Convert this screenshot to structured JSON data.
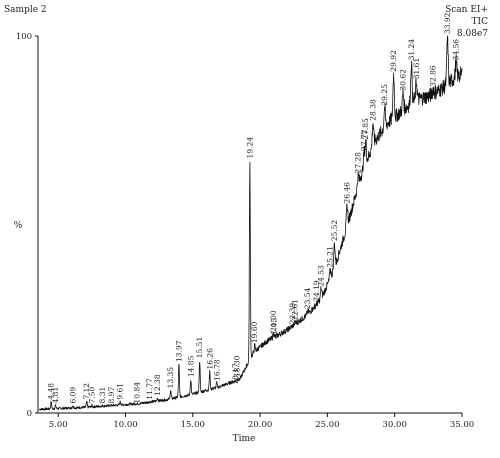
{
  "chart_data": {
    "type": "line",
    "sample_title": "Sample 2",
    "info": [
      "Scan EI+",
      "TIC",
      "8.08e7"
    ],
    "xlabel": "Time",
    "ylabel": "%",
    "xlim": [
      3.5,
      35.0
    ],
    "ylim": [
      0,
      100
    ],
    "x_ticks": [
      5.0,
      10.0,
      15.0,
      20.0,
      25.0,
      30.0,
      35.0
    ],
    "x_tick_labels": [
      "5.00",
      "10.00",
      "15.00",
      "20.00",
      "25.00",
      "30.00",
      "35.00"
    ],
    "y_ticks": [
      0,
      100
    ],
    "y_tick_labels": [
      "0",
      "100"
    ],
    "peaks": [
      {
        "rt": 4.48,
        "label": "4.48",
        "h": 3
      },
      {
        "rt": 4.81,
        "label": "4.81",
        "h": 2
      },
      {
        "rt": 6.09,
        "label": "6.09",
        "h": 2
      },
      {
        "rt": 7.12,
        "label": "7.12",
        "h": 3
      },
      {
        "rt": 7.5,
        "label": "7.50",
        "h": 2
      },
      {
        "rt": 8.31,
        "label": "8.31",
        "h": 2
      },
      {
        "rt": 8.97,
        "label": "8.97",
        "h": 2
      },
      {
        "rt": 9.61,
        "label": "9.61",
        "h": 3
      },
      {
        "rt": 10.84,
        "label": "10.84",
        "h": 2
      },
      {
        "rt": 11.77,
        "label": "11.77",
        "h": 3
      },
      {
        "rt": 12.38,
        "label": "12.38",
        "h": 4
      },
      {
        "rt": 13.35,
        "label": "13.35",
        "h": 6
      },
      {
        "rt": 13.97,
        "label": "13.97",
        "h": 13
      },
      {
        "rt": 14.85,
        "label": "14.85",
        "h": 9
      },
      {
        "rt": 15.51,
        "label": "15.51",
        "h": 14
      },
      {
        "rt": 16.26,
        "label": "16.26",
        "h": 11
      },
      {
        "rt": 16.78,
        "label": "16.78",
        "h": 8
      },
      {
        "rt": 18.17,
        "label": "18.17",
        "h": 7
      },
      {
        "rt": 18.3,
        "label": "18.30",
        "h": 9
      },
      {
        "rt": 19.24,
        "label": "19.24",
        "h": 67
      },
      {
        "rt": 19.6,
        "label": "19.60",
        "h": 18
      },
      {
        "rt": 21.0,
        "label": "21.00",
        "h": 21
      },
      {
        "rt": 21.05,
        "label": "21.05",
        "h": 19
      },
      {
        "rt": 22.39,
        "label": "22.39",
        "h": 23
      },
      {
        "rt": 22.61,
        "label": "22.61",
        "h": 24
      },
      {
        "rt": 23.54,
        "label": "23.54",
        "h": 27
      },
      {
        "rt": 24.19,
        "label": "24.19",
        "h": 29
      },
      {
        "rt": 24.53,
        "label": "24.53",
        "h": 33
      },
      {
        "rt": 25.21,
        "label": "25.21",
        "h": 38
      },
      {
        "rt": 25.52,
        "label": "25.52",
        "h": 45
      },
      {
        "rt": 26.46,
        "label": "26.46",
        "h": 55
      },
      {
        "rt": 27.28,
        "label": "27.28",
        "h": 63
      },
      {
        "rt": 27.72,
        "label": "27.72",
        "h": 69
      },
      {
        "rt": 27.85,
        "label": "27.85",
        "h": 72
      },
      {
        "rt": 28.38,
        "label": "28.38",
        "h": 77
      },
      {
        "rt": 29.25,
        "label": "29.25",
        "h": 81
      },
      {
        "rt": 29.92,
        "label": "29.92",
        "h": 90
      },
      {
        "rt": 30.62,
        "label": "30.62",
        "h": 85
      },
      {
        "rt": 31.24,
        "label": "31.24",
        "h": 93
      },
      {
        "rt": 31.61,
        "label": "31.61",
        "h": 88
      },
      {
        "rt": 32.86,
        "label": "32.86",
        "h": 86
      },
      {
        "rt": 33.92,
        "label": "33.92",
        "h": 100
      },
      {
        "rt": 34.56,
        "label": "34.56",
        "h": 93
      }
    ],
    "baseline": {
      "x": [
        3.6,
        5,
        7,
        9,
        11,
        13,
        15,
        17,
        18.5,
        19.5,
        20.5,
        22,
        23.5,
        24.5,
        25.5,
        26.5,
        27.5,
        28.5,
        29.5,
        30.5,
        31.5,
        32.5,
        33.5,
        34.5,
        35.0
      ],
      "y": [
        1,
        1.2,
        1.5,
        2,
        2.5,
        3.5,
        5,
        7,
        9,
        16,
        19,
        22,
        26,
        30,
        38,
        50,
        63,
        72,
        77,
        80,
        83,
        84,
        86,
        89,
        90
      ]
    }
  }
}
